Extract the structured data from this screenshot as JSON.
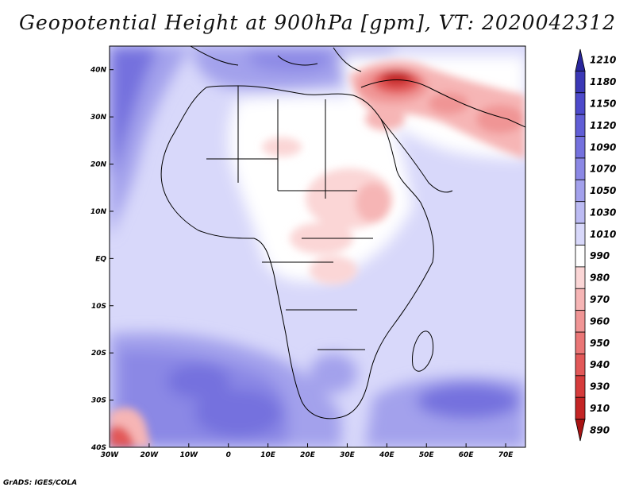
{
  "title": "Geopotential Height at 900hPa [gpm], VT: 2020042312",
  "credit": "GrADS: IGES/COLA",
  "axes": {
    "lon_ticks": [
      "30W",
      "20W",
      "10W",
      "0",
      "10E",
      "20E",
      "30E",
      "40E",
      "50E",
      "60E",
      "70E"
    ],
    "lat_ticks": [
      "40N",
      "30N",
      "20N",
      "10N",
      "EQ",
      "10S",
      "20S",
      "30S",
      "40S"
    ]
  },
  "colorbar": {
    "labels": [
      "1210",
      "1180",
      "1150",
      "1120",
      "1090",
      "1070",
      "1050",
      "1030",
      "1010",
      "990",
      "980",
      "970",
      "960",
      "950",
      "940",
      "930",
      "910",
      "890"
    ],
    "colors": [
      "#29269c",
      "#3b38b6",
      "#4d4acb",
      "#615ed6",
      "#7471de",
      "#8b88e5",
      "#a3a1ec",
      "#bcbbf3",
      "#d8d8fa",
      "#ffffff",
      "#fbd6d6",
      "#f6b5b5",
      "#f09595",
      "#ea7676",
      "#e25858",
      "#d63c3c",
      "#c42525",
      "#a81414"
    ]
  },
  "map": {
    "region": "Africa and Middle East",
    "lon_range": [
      -30,
      75
    ],
    "lat_range": [
      -40,
      45
    ]
  }
}
